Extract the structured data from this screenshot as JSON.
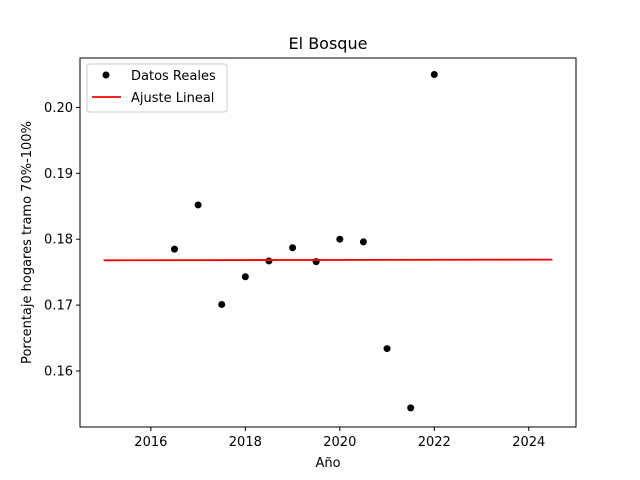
{
  "chart_data": {
    "type": "scatter",
    "title": "El Bosque",
    "xlabel": "Año",
    "ylabel": "Porcentaje hogares tramo 70%-100%",
    "xlim": [
      2014.5,
      2025.0
    ],
    "ylim": [
      0.1515,
      0.2075
    ],
    "xticks": [
      2016,
      2018,
      2020,
      2022,
      2024
    ],
    "yticks": [
      0.16,
      0.17,
      0.18,
      0.19,
      0.2
    ],
    "xtick_labels": [
      "2016",
      "2018",
      "2020",
      "2022",
      "2024"
    ],
    "ytick_labels": [
      "0.16",
      "0.17",
      "0.18",
      "0.19",
      "0.20"
    ],
    "grid": false,
    "legend_position": "top-left",
    "series": [
      {
        "name": "Datos Reales",
        "kind": "scatter",
        "color": "#000000",
        "points": [
          {
            "x": 2016.5,
            "y": 0.1785
          },
          {
            "x": 2017.0,
            "y": 0.1852
          },
          {
            "x": 2017.5,
            "y": 0.1701
          },
          {
            "x": 2018.0,
            "y": 0.1743
          },
          {
            "x": 2018.5,
            "y": 0.1767
          },
          {
            "x": 2019.0,
            "y": 0.1787
          },
          {
            "x": 2019.5,
            "y": 0.1766
          },
          {
            "x": 2020.0,
            "y": 0.18
          },
          {
            "x": 2020.5,
            "y": 0.1796
          },
          {
            "x": 2021.0,
            "y": 0.1634
          },
          {
            "x": 2021.5,
            "y": 0.1544
          },
          {
            "x": 2022.0,
            "y": 0.205
          }
        ]
      },
      {
        "name": "Ajuste Lineal",
        "kind": "line",
        "color": "#ff0000",
        "points": [
          {
            "x": 2015.0,
            "y": 0.1768
          },
          {
            "x": 2024.5,
            "y": 0.1769
          }
        ]
      }
    ]
  }
}
